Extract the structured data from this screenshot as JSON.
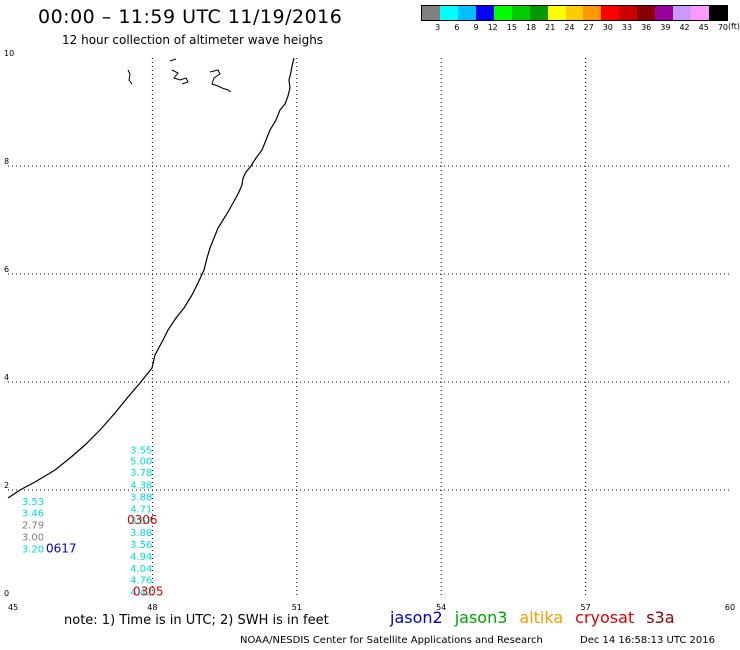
{
  "header": {
    "title": "00:00 – 11:59 UTC 11/19/2016",
    "subtitle": "12 hour collection of altimeter wave heighs"
  },
  "color_scale": {
    "colors": [
      "#808080",
      "#00ffff",
      "#00bfff",
      "#0000ff",
      "#00ff00",
      "#00cc00",
      "#009900",
      "#ffff00",
      "#ffcc00",
      "#ff9900",
      "#ff0000",
      "#cc0000",
      "#880000",
      "#990099",
      "#cc99ff",
      "#ff99ff",
      "#000000"
    ],
    "labels": [
      "3",
      "6",
      "9",
      "12",
      "15",
      "18",
      "21",
      "24",
      "27",
      "30",
      "33",
      "36",
      "39",
      "42",
      "45",
      "70"
    ],
    "unit": "(ft)"
  },
  "axes": {
    "x_ticks": [
      "45",
      "48",
      "51",
      "54",
      "57",
      "60"
    ],
    "y_ticks": [
      "0",
      "2",
      "4",
      "6",
      "8",
      "10"
    ]
  },
  "wave_labels": [
    {
      "text": "3.55",
      "color": "#00e0e0",
      "lon": 48.0,
      "lat": 2.75
    },
    {
      "text": "5.00",
      "color": "#00e0e0",
      "lon": 48.0,
      "lat": 2.55
    },
    {
      "text": "3.78",
      "color": "#00e0e0",
      "lon": 48.0,
      "lat": 2.33
    },
    {
      "text": "4.38",
      "color": "#00e0e0",
      "lon": 48.0,
      "lat": 2.1
    },
    {
      "text": "3.88",
      "color": "#00e0e0",
      "lon": 48.0,
      "lat": 1.88
    },
    {
      "text": "4.71",
      "color": "#00e0e0",
      "lon": 48.0,
      "lat": 1.66
    },
    {
      "text": "3.67",
      "color": "#00e0e0",
      "lon": 48.0,
      "lat": 1.44
    },
    {
      "text": "3.88",
      "color": "#00e0e0",
      "lon": 48.0,
      "lat": 1.22
    },
    {
      "text": "3.56",
      "color": "#00e0e0",
      "lon": 48.0,
      "lat": 1.0
    },
    {
      "text": "4.94",
      "color": "#00e0e0",
      "lon": 48.0,
      "lat": 0.78
    },
    {
      "text": "4.04",
      "color": "#00e0e0",
      "lon": 48.0,
      "lat": 0.56
    },
    {
      "text": "4.76",
      "color": "#00e0e0",
      "lon": 48.0,
      "lat": 0.34
    },
    {
      "text": "4.42",
      "color": "#00e0e0",
      "lon": 48.0,
      "lat": 0.12
    },
    {
      "text": "3.53",
      "color": "#00e0e0",
      "lon": 45.75,
      "lat": 1.8
    },
    {
      "text": "3.46",
      "color": "#00e0e0",
      "lon": 45.75,
      "lat": 1.58
    },
    {
      "text": "2.79",
      "color": "#808080",
      "lon": 45.75,
      "lat": 1.36
    },
    {
      "text": "3.00",
      "color": "#808080",
      "lon": 45.75,
      "lat": 1.14
    },
    {
      "text": "3.20",
      "color": "#00e0e0",
      "lon": 45.75,
      "lat": 0.92
    }
  ],
  "pass_times": [
    {
      "text": "0306",
      "color": "#e00000",
      "lon": 48.0,
      "lat": 1.44
    },
    {
      "text": "0617",
      "color": "#0000cc",
      "lon": 46.2,
      "lat": 0.92
    },
    {
      "text": "0305",
      "color": "#e00000",
      "lon": 48.0,
      "lat": 0.12
    }
  ],
  "footer": {
    "note": "note: 1) Time is in UTC; 2) SWH is in feet",
    "satellites": [
      {
        "name": "jason2",
        "color": "#0000cc"
      },
      {
        "name": "jason3",
        "color": "#00a000"
      },
      {
        "name": "altika",
        "color": "#ff9900"
      },
      {
        "name": "cryosat",
        "color": "#e00000"
      },
      {
        "name": "s3a",
        "color": "#880000"
      }
    ],
    "credit": "NOAA/NESDIS Center for Satellite Applications and Research",
    "timestamp": "Dec 14 16:58:13 UTC 2016"
  }
}
